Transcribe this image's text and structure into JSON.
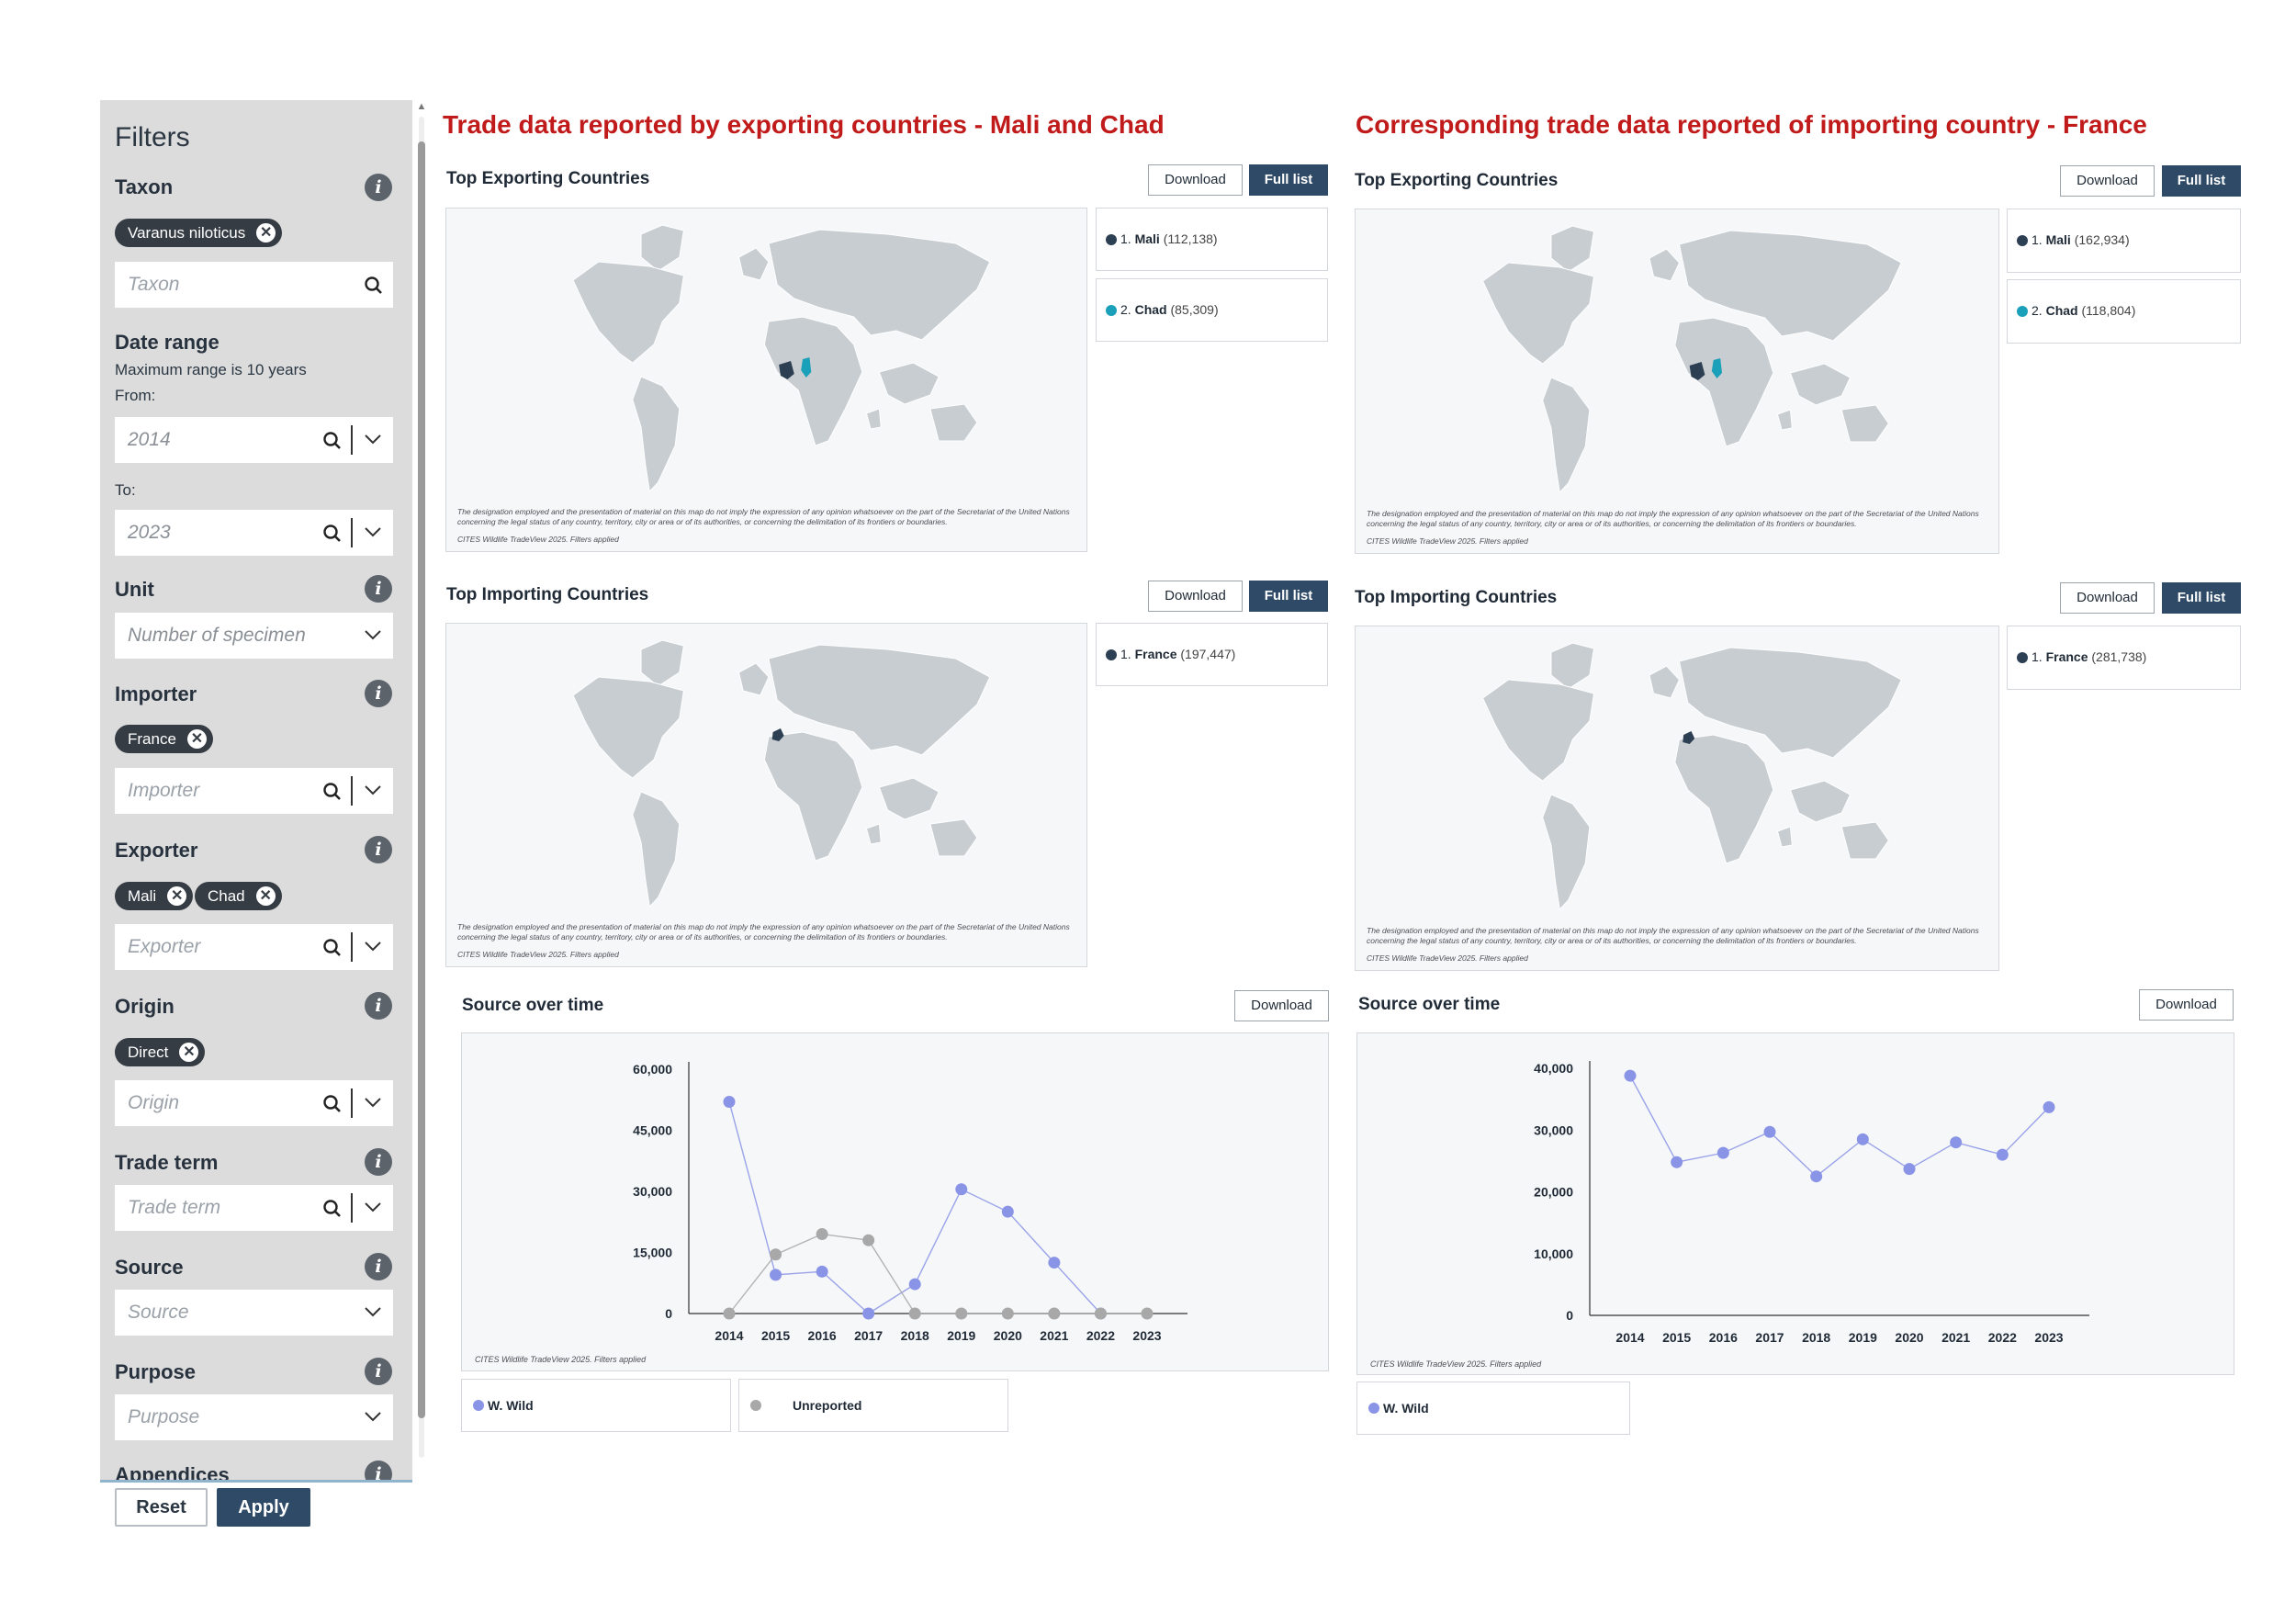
{
  "sidebar": {
    "title": "Filters",
    "taxon": {
      "label": "Taxon",
      "chip": "Varanus niloticus",
      "placeholder": "Taxon"
    },
    "date_range": {
      "label": "Date range",
      "note": "Maximum range is 10 years",
      "from_label": "From:",
      "from_value": "2014",
      "to_label": "To:",
      "to_value": "2023"
    },
    "unit": {
      "label": "Unit",
      "value": "Number of specimen"
    },
    "importer": {
      "label": "Importer",
      "chips": [
        "France"
      ],
      "placeholder": "Importer"
    },
    "exporter": {
      "label": "Exporter",
      "chips": [
        "Mali",
        "Chad"
      ],
      "placeholder": "Exporter"
    },
    "origin": {
      "label": "Origin",
      "chips": [
        "Direct"
      ],
      "placeholder": "Origin"
    },
    "trade_term": {
      "label": "Trade term",
      "placeholder": "Trade term"
    },
    "source": {
      "label": "Source",
      "placeholder": "Source"
    },
    "purpose": {
      "label": "Purpose",
      "placeholder": "Purpose"
    },
    "appendices": {
      "label": "Appendices"
    },
    "reset_label": "Reset",
    "apply_label": "Apply"
  },
  "left_panel": {
    "heading": "Trade data reported by exporting countries  - Mali and Chad",
    "top_exporting": {
      "title": "Top Exporting Countries",
      "download": "Download",
      "full_list": "Full list",
      "legend": [
        {
          "rank": "1.",
          "name": "Mali",
          "count": "(112,138)",
          "color": "#2d3f52"
        },
        {
          "rank": "2.",
          "name": "Chad",
          "count": "(85,309)",
          "color": "#1aa0b8"
        }
      ]
    },
    "top_importing": {
      "title": "Top Importing Countries",
      "download": "Download",
      "full_list": "Full list",
      "legend": [
        {
          "rank": "1.",
          "name": "France",
          "count": "(197,447)",
          "color": "#2d3f52"
        }
      ]
    },
    "source_over_time": {
      "title": "Source over time",
      "download": "Download",
      "legend": [
        {
          "name": "W. Wild",
          "color": "#8a94e6"
        },
        {
          "name": "Unreported",
          "color": "#a8a8a8"
        }
      ]
    }
  },
  "right_panel": {
    "heading": "Corresponding trade data reported of importing country  - France",
    "top_exporting": {
      "title": "Top Exporting Countries",
      "download": "Download",
      "full_list": "Full list",
      "legend": [
        {
          "rank": "1.",
          "name": "Mali",
          "count": "(162,934)",
          "color": "#2d3f52"
        },
        {
          "rank": "2.",
          "name": "Chad",
          "count": "(118,804)",
          "color": "#1aa0b8"
        }
      ]
    },
    "top_importing": {
      "title": "Top Importing Countries",
      "download": "Download",
      "full_list": "Full list",
      "legend": [
        {
          "rank": "1.",
          "name": "France",
          "count": "(281,738)",
          "color": "#2d3f52"
        }
      ]
    },
    "source_over_time": {
      "title": "Source over time",
      "download": "Download",
      "legend": [
        {
          "name": "W. Wild",
          "color": "#8a94e6"
        }
      ]
    }
  },
  "map_text": {
    "disclaimer": "The designation employed and the presentation of material on this map do not imply the expression of any opinion whatsoever on the part of the Secretariat of the United Nations concerning the legal status of any country, territory, city or area or of its authorities, or concerning the delimitation of its frontiers or boundaries.",
    "credit": "CITES Wildlife TradeView 2025. Filters applied"
  },
  "chart_credit": "CITES Wildlife TradeView 2025. Filters applied",
  "chart_data": [
    {
      "type": "line",
      "x": [
        "2014",
        "2015",
        "2016",
        "2017",
        "2018",
        "2019",
        "2020",
        "2021",
        "2022",
        "2023"
      ],
      "ylim": [
        0,
        60000
      ],
      "yticks": [
        "60,000",
        "45,000",
        "30,000",
        "15,000",
        "0"
      ],
      "ytick_values": [
        60000,
        45000,
        30000,
        15000,
        0
      ],
      "series": [
        {
          "name": "W. Wild",
          "color": "#8a94e6",
          "values": [
            52000,
            9500,
            10300,
            0,
            7200,
            30500,
            25000,
            12500,
            0,
            0
          ],
          "points": 9
        },
        {
          "name": "Unreported",
          "color": "#a8a8a8",
          "values": [
            0,
            14500,
            19500,
            18000,
            0,
            0,
            0,
            0,
            0,
            0
          ],
          "points": 10
        }
      ],
      "title": "",
      "xlabel": "",
      "ylabel": "",
      "grid": false,
      "legend": "bottom-left"
    },
    {
      "type": "line",
      "x": [
        "2014",
        "2015",
        "2016",
        "2017",
        "2018",
        "2019",
        "2020",
        "2021",
        "2022",
        "2023"
      ],
      "ylim": [
        0,
        40000
      ],
      "yticks": [
        "40,000",
        "30,000",
        "20,000",
        "10,000",
        "0"
      ],
      "ytick_values": [
        40000,
        30000,
        20000,
        10000,
        0
      ],
      "series": [
        {
          "name": "W. Wild",
          "color": "#8a94e6",
          "values": [
            38800,
            24800,
            26300,
            29700,
            22500,
            28500,
            23700,
            28000,
            26000,
            33700
          ],
          "points": 10
        }
      ],
      "title": "",
      "xlabel": "",
      "ylabel": "",
      "grid": false,
      "legend": "bottom-left"
    }
  ]
}
